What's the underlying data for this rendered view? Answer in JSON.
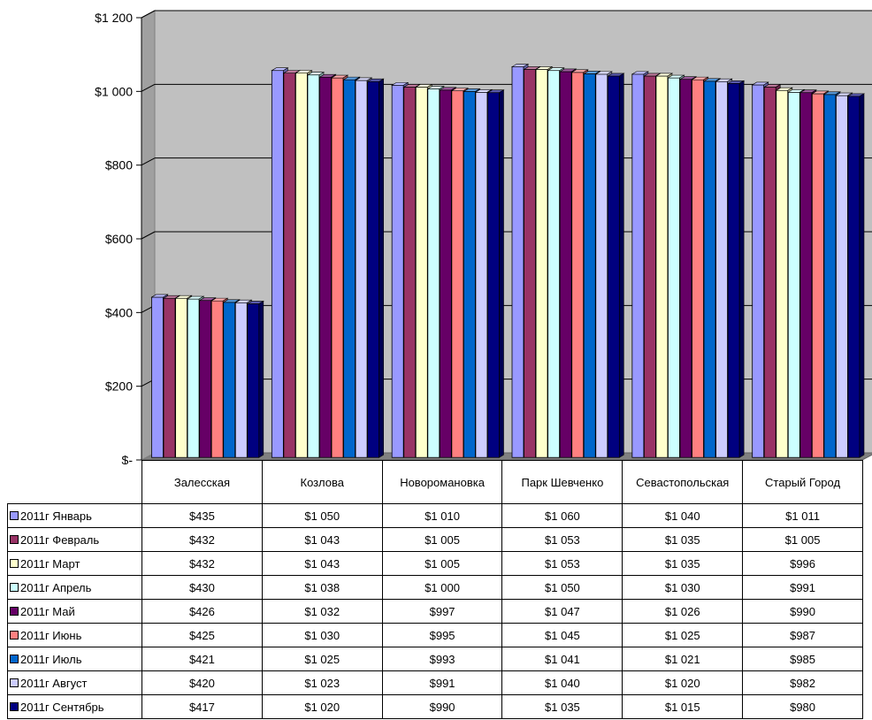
{
  "chart_data": {
    "type": "bar",
    "categories": [
      "Залесская",
      "Козлова",
      "Новоромановка",
      "Парк Шевченко",
      "Севастопольская",
      "Старый Город"
    ],
    "series": [
      {
        "name": "2011г Январь",
        "color": "#9999ff",
        "values": [
          435,
          1050,
          1010,
          1060,
          1040,
          1011
        ],
        "labels": [
          "$435",
          "$1 050",
          "$1 010",
          "$1 060",
          "$1 040",
          "$1 011"
        ]
      },
      {
        "name": "2011г Февраль",
        "color": "#993366",
        "values": [
          432,
          1043,
          1005,
          1053,
          1035,
          1005
        ],
        "labels": [
          "$432",
          "$1 043",
          "$1 005",
          "$1 053",
          "$1 035",
          "$1 005"
        ]
      },
      {
        "name": "2011г Март",
        "color": "#ffffcc",
        "values": [
          432,
          1043,
          1005,
          1053,
          1035,
          996
        ],
        "labels": [
          "$432",
          "$1 043",
          "$1 005",
          "$1 053",
          "$1 035",
          "$996"
        ]
      },
      {
        "name": "2011г Апрель",
        "color": "#ccffff",
        "values": [
          430,
          1038,
          1000,
          1050,
          1030,
          991
        ],
        "labels": [
          "$430",
          "$1 038",
          "$1 000",
          "$1 050",
          "$1 030",
          "$991"
        ]
      },
      {
        "name": "2011г Май",
        "color": "#660066",
        "values": [
          426,
          1032,
          997,
          1047,
          1026,
          990
        ],
        "labels": [
          "$426",
          "$1 032",
          "$997",
          "$1 047",
          "$1 026",
          "$990"
        ]
      },
      {
        "name": "2011г Июнь",
        "color": "#ff8080",
        "values": [
          425,
          1030,
          995,
          1045,
          1025,
          987
        ],
        "labels": [
          "$425",
          "$1 030",
          "$995",
          "$1 045",
          "$1 025",
          "$987"
        ]
      },
      {
        "name": "2011г Июль",
        "color": "#0066cc",
        "values": [
          421,
          1025,
          993,
          1041,
          1021,
          985
        ],
        "labels": [
          "$421",
          "$1 025",
          "$993",
          "$1 041",
          "$1 021",
          "$985"
        ]
      },
      {
        "name": "2011г Август",
        "color": "#ccccff",
        "values": [
          420,
          1023,
          991,
          1040,
          1020,
          982
        ],
        "labels": [
          "$420",
          "$1 023",
          "$991",
          "$1 040",
          "$1 020",
          "$982"
        ]
      },
      {
        "name": "2011г Сентябрь",
        "color": "#000080",
        "values": [
          417,
          1020,
          990,
          1035,
          1015,
          980
        ],
        "labels": [
          "$417",
          "$1 020",
          "$990",
          "$1 035",
          "$1 015",
          "$980"
        ]
      }
    ],
    "ylim": [
      0,
      1200
    ],
    "yticks": [
      0,
      200,
      400,
      600,
      800,
      1000,
      1200
    ],
    "ytick_labels": [
      "$-",
      "$200",
      "$400",
      "$600",
      "$800",
      "$1 000",
      "$1 200"
    ],
    "grid": true,
    "wall_color": "#c0c0c0",
    "legend": "data-table",
    "style": "3d-clustered-column"
  }
}
